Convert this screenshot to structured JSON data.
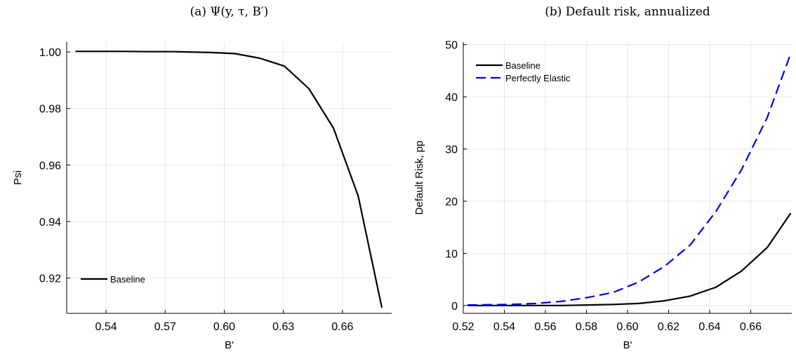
{
  "chart_data": [
    {
      "type": "line",
      "title": "(a) Ψ(y, τ, B′)",
      "xlabel": "B'",
      "ylabel": "Psi",
      "xlim": [
        0.52,
        0.685
      ],
      "ylim": [
        0.9075,
        1.0035
      ],
      "xticks": [
        0.54,
        0.57,
        0.6,
        0.63,
        0.66
      ],
      "xtick_labels": [
        "0.54",
        "0.57",
        "0.60",
        "0.63",
        "0.66"
      ],
      "yticks": [
        0.92,
        0.94,
        0.96,
        0.98,
        1.0
      ],
      "ytick_labels": [
        "0.92",
        "0.94",
        "0.96",
        "0.98",
        "1.00"
      ],
      "grid": true,
      "legend": "lower-left",
      "series": [
        {
          "name": "Baseline",
          "color": "#000000",
          "dash": "solid",
          "x": [
            0.5245,
            0.537,
            0.5495,
            0.562,
            0.5745,
            0.581,
            0.593,
            0.6055,
            0.618,
            0.6305,
            0.643,
            0.6555,
            0.668,
            0.68
          ],
          "y": [
            1.0002,
            1.0002,
            1.0002,
            1.0001,
            1.0001,
            1.0,
            0.9998,
            0.9994,
            0.9978,
            0.995,
            0.987,
            0.973,
            0.949,
            0.9095
          ]
        }
      ]
    },
    {
      "type": "line",
      "title": "(b) Default risk, annualized",
      "xlabel": "B'",
      "ylabel": "Default Risk, pp",
      "xlim": [
        0.52,
        0.68
      ],
      "ylim": [
        -1.5,
        50.5
      ],
      "xticks": [
        0.52,
        0.54,
        0.56,
        0.58,
        0.6,
        0.62,
        0.64,
        0.66
      ],
      "xtick_labels": [
        "0.52",
        "0.54",
        "0.56",
        "0.58",
        "0.60",
        "0.62",
        "0.64",
        "0.66"
      ],
      "yticks": [
        0,
        10,
        20,
        30,
        40,
        50
      ],
      "ytick_labels": [
        "0",
        "10",
        "20",
        "30",
        "40",
        "50"
      ],
      "grid": true,
      "legend": "top-left",
      "series": [
        {
          "name": "Baseline",
          "color": "#000000",
          "dash": "solid",
          "x": [
            0.522,
            0.543,
            0.555,
            0.568,
            0.58,
            0.593,
            0.6055,
            0.618,
            0.6305,
            0.643,
            0.6555,
            0.668,
            0.6795
          ],
          "y": [
            0.0,
            0.0,
            0.0,
            0.0,
            0.1,
            0.2,
            0.4,
            0.9,
            1.8,
            3.5,
            6.6,
            11.1,
            17.7
          ]
        },
        {
          "name": "Perfectly Elastic",
          "color": "#0000ee",
          "dash": "dashed",
          "x": [
            0.522,
            0.543,
            0.555,
            0.568,
            0.58,
            0.593,
            0.6055,
            0.618,
            0.6305,
            0.643,
            0.6555,
            0.668,
            0.6795
          ],
          "y": [
            0.1,
            0.2,
            0.4,
            0.8,
            1.5,
            2.5,
            4.5,
            7.5,
            11.6,
            18.0,
            26.0,
            36.0,
            48.3
          ]
        }
      ]
    }
  ]
}
